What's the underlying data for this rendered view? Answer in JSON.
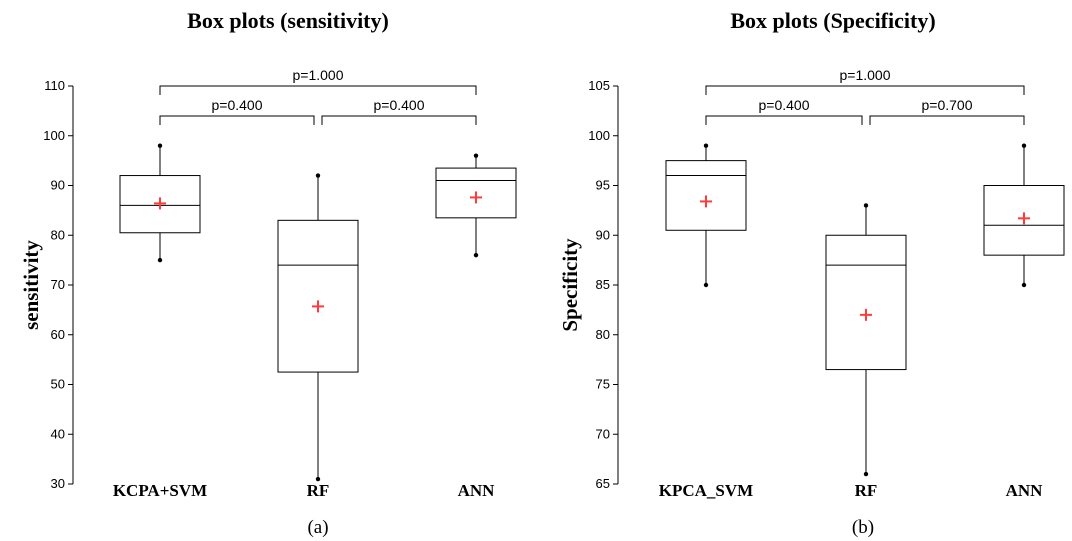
{
  "chart_data": [
    {
      "type": "box",
      "title": "Box plots (sensitivity)",
      "ylabel": "sensitivity",
      "xlabel": "",
      "ylim": [
        30,
        110
      ],
      "yticks": [
        "30",
        "40",
        "50",
        "60",
        "70",
        "80",
        "90",
        "100",
        "110"
      ],
      "categories": [
        "KCPA+SVM",
        "RF",
        "ANN"
      ],
      "boxes": [
        {
          "label": "KCPA+SVM",
          "min": 75,
          "q1": 80.5,
          "median": 86,
          "q3": 92,
          "max": 98,
          "mean": 86.4
        },
        {
          "label": "RF",
          "min": 31,
          "q1": 52.5,
          "median": 74,
          "q3": 83,
          "max": 92,
          "mean": 65.7
        },
        {
          "label": "ANN",
          "min": 76,
          "q1": 83.5,
          "median": 91,
          "q3": 93.5,
          "max": 96,
          "mean": 87.6
        }
      ],
      "comparisons": [
        {
          "from": 0,
          "to": 1,
          "label": "p=0.400"
        },
        {
          "from": 1,
          "to": 2,
          "label": "p=0.400"
        },
        {
          "from": 0,
          "to": 2,
          "label": "p=1.000"
        }
      ],
      "panel_label": "(a)",
      "mean_color": "#ff3b3b"
    },
    {
      "type": "box",
      "title": "Box plots (Specificity)",
      "ylabel": "Specificity",
      "xlabel": "",
      "ylim": [
        65,
        105
      ],
      "yticks": [
        "65",
        "70",
        "75",
        "80",
        "85",
        "90",
        "95",
        "100",
        "105"
      ],
      "categories": [
        "KPCA_SVM",
        "RF",
        "ANN"
      ],
      "boxes": [
        {
          "label": "KPCA_SVM",
          "min": 85,
          "q1": 90.5,
          "median": 96,
          "q3": 97.5,
          "max": 99,
          "mean": 93.4
        },
        {
          "label": "RF",
          "min": 66,
          "q1": 76.5,
          "median": 87,
          "q3": 90,
          "max": 93,
          "mean": 82
        },
        {
          "label": "ANN",
          "min": 85,
          "q1": 88,
          "median": 91,
          "q3": 95,
          "max": 99,
          "mean": 91.7
        }
      ],
      "comparisons": [
        {
          "from": 0,
          "to": 1,
          "label": "p=0.400"
        },
        {
          "from": 1,
          "to": 2,
          "label": "p=0.700"
        },
        {
          "from": 0,
          "to": 2,
          "label": "p=1.000"
        }
      ],
      "panel_label": "(b)",
      "mean_color": "#ff3b3b"
    }
  ]
}
